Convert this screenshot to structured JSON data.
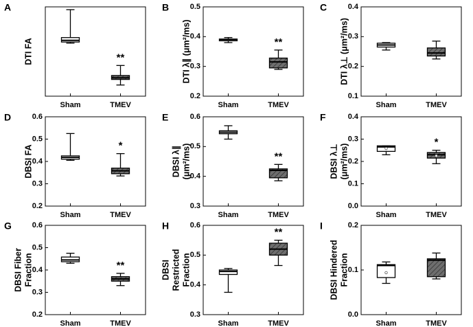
{
  "chart_data": [
    {
      "type": "box",
      "letter": "A",
      "ylabel": [
        "DTI FA"
      ],
      "categories": [
        "Sham",
        "TMEV"
      ],
      "ylim": [
        0.1,
        0.26
      ],
      "yticks": [],
      "boxes": [
        {
          "min": 0.195,
          "q1": 0.197,
          "median": 0.2,
          "q3": 0.205,
          "max": 0.255
        },
        {
          "min": 0.12,
          "q1": 0.13,
          "median": 0.133,
          "q3": 0.137,
          "max": 0.155
        }
      ],
      "means": [
        null,
        null
      ],
      "colors": [
        "#ffffff",
        "#6e6e6e"
      ],
      "annotations": [
        null,
        "**"
      ]
    },
    {
      "type": "box",
      "letter": "B",
      "ylabel": [
        "DTI λ∥ (μm²/ms)"
      ],
      "categories": [
        "Sham",
        "TMEV"
      ],
      "ylim": [
        0.2,
        0.5
      ],
      "yticks": [
        0.2,
        0.3,
        0.4,
        0.5
      ],
      "boxes": [
        {
          "min": 0.38,
          "q1": 0.386,
          "median": 0.39,
          "q3": 0.392,
          "max": 0.397
        },
        {
          "min": 0.29,
          "q1": 0.295,
          "median": 0.315,
          "q3": 0.328,
          "max": 0.355
        }
      ],
      "means": [
        null,
        null
      ],
      "colors": [
        "#ffffff",
        "#6e6e6e"
      ],
      "annotations": [
        null,
        "**"
      ]
    },
    {
      "type": "box",
      "letter": "C",
      "ylabel": [
        "DTI λ⊥ (μm²/ms)"
      ],
      "categories": [
        "Sham",
        "TMEV"
      ],
      "ylim": [
        0.1,
        0.4
      ],
      "yticks": [
        0.1,
        0.2,
        0.3,
        0.4
      ],
      "boxes": [
        {
          "min": 0.255,
          "q1": 0.265,
          "median": 0.272,
          "q3": 0.278,
          "max": 0.28
        },
        {
          "min": 0.225,
          "q1": 0.235,
          "median": 0.245,
          "q3": 0.262,
          "max": 0.285
        }
      ],
      "means": [
        null,
        null
      ],
      "colors": [
        "#ffffff",
        "#6e6e6e"
      ],
      "annotations": [
        null,
        null
      ]
    },
    {
      "type": "box",
      "letter": "D",
      "ylabel": [
        "DBSI FA"
      ],
      "categories": [
        "Sham",
        "TMEV"
      ],
      "ylim": [
        0.2,
        0.6
      ],
      "yticks": [
        0.2,
        0.3,
        0.4,
        0.5,
        0.6
      ],
      "boxes": [
        {
          "min": 0.405,
          "q1": 0.41,
          "median": 0.418,
          "q3": 0.425,
          "max": 0.525
        },
        {
          "min": 0.335,
          "q1": 0.345,
          "median": 0.358,
          "q3": 0.37,
          "max": 0.435
        }
      ],
      "means": [
        null,
        null
      ],
      "colors": [
        "#ffffff",
        "#6e6e6e"
      ],
      "annotations": [
        null,
        "*"
      ]
    },
    {
      "type": "box",
      "letter": "E",
      "ylabel": [
        "DBSI λ∥",
        "(μm²/ms)"
      ],
      "categories": [
        "Sham",
        "TMEV"
      ],
      "ylim": [
        0.3,
        0.6
      ],
      "yticks": [
        0.3,
        0.4,
        0.5,
        0.6
      ],
      "boxes": [
        {
          "min": 0.525,
          "q1": 0.543,
          "median": 0.548,
          "q3": 0.553,
          "max": 0.57
        },
        {
          "min": 0.385,
          "q1": 0.395,
          "median": 0.42,
          "q3": 0.425,
          "max": 0.44
        }
      ],
      "means": [
        null,
        null
      ],
      "colors": [
        "#ffffff",
        "#6e6e6e"
      ],
      "annotations": [
        null,
        "**"
      ]
    },
    {
      "type": "box",
      "letter": "F",
      "ylabel": [
        "DBSI λ⊥",
        "(μm²/ms)"
      ],
      "categories": [
        "Sham",
        "TMEV"
      ],
      "ylim": [
        0,
        0.4
      ],
      "yticks": [
        {
          "value": 0,
          "label": "0.0"
        },
        0.1,
        0.2,
        0.3,
        0.4
      ],
      "boxes": [
        {
          "min": 0.23,
          "q1": 0.245,
          "median": 0.265,
          "q3": 0.27,
          "max": 0.27
        },
        {
          "min": 0.19,
          "q1": 0.215,
          "median": 0.23,
          "q3": 0.24,
          "max": 0.25
        }
      ],
      "means": [
        0.258,
        0.225
      ],
      "colors": [
        "#ffffff",
        "#6e6e6e"
      ],
      "annotations": [
        null,
        "*"
      ]
    },
    {
      "type": "box",
      "letter": "G",
      "ylabel": [
        "DBSI Fiber",
        "Fraction"
      ],
      "categories": [
        "Sham",
        "TMEV"
      ],
      "ylim": [
        0.2,
        0.6
      ],
      "yticks": [
        0.2,
        0.3,
        0.4,
        0.5,
        0.6
      ],
      "boxes": [
        {
          "min": 0.43,
          "q1": 0.437,
          "median": 0.445,
          "q3": 0.458,
          "max": 0.475
        },
        {
          "min": 0.33,
          "q1": 0.35,
          "median": 0.36,
          "q3": 0.37,
          "max": 0.385
        }
      ],
      "means": [
        null,
        null
      ],
      "colors": [
        "#ffffff",
        "#6e6e6e"
      ],
      "annotations": [
        null,
        "**"
      ]
    },
    {
      "type": "box",
      "letter": "H",
      "ylabel": [
        "DBSI",
        "Restricted",
        "Fraction"
      ],
      "categories": [
        "Sham",
        "TMEV"
      ],
      "ylim": [
        0.3,
        0.6
      ],
      "yticks": [
        0.3,
        0.4,
        0.5,
        0.6
      ],
      "boxes": [
        {
          "min": 0.375,
          "q1": 0.435,
          "median": 0.445,
          "q3": 0.45,
          "max": 0.455
        },
        {
          "min": 0.465,
          "q1": 0.5,
          "median": 0.52,
          "q3": 0.54,
          "max": 0.55
        }
      ],
      "means": [
        null,
        null
      ],
      "colors": [
        "#ffffff",
        "#6e6e6e"
      ],
      "annotations": [
        null,
        "**"
      ]
    },
    {
      "type": "box",
      "letter": "I",
      "ylabel": [
        "DBSI Hindered",
        "Fraction"
      ],
      "categories": [
        "Sham",
        "TMEV"
      ],
      "ylim": [
        0,
        0.2
      ],
      "yticks": [
        {
          "value": 0,
          "label": "0.0"
        },
        0.1,
        0.2
      ],
      "boxes": [
        {
          "min": 0.07,
          "q1": 0.083,
          "median": 0.11,
          "q3": 0.112,
          "max": 0.118
        },
        {
          "min": 0.08,
          "q1": 0.085,
          "median": 0.122,
          "q3": 0.125,
          "max": 0.138
        }
      ],
      "means": [
        0.094,
        null
      ],
      "colors": [
        "#ffffff",
        "#6e6e6e"
      ],
      "annotations": [
        null,
        null
      ]
    }
  ]
}
